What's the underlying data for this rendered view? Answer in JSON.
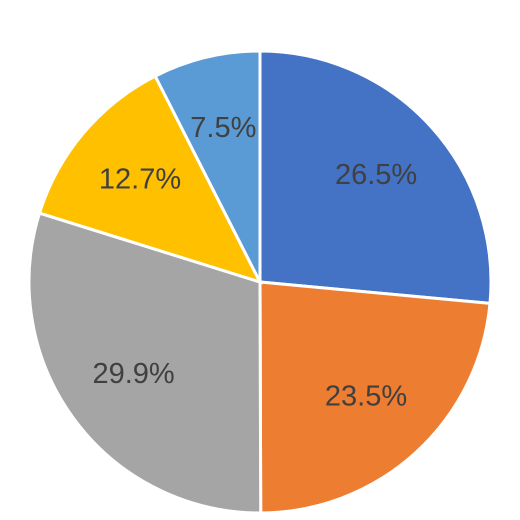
{
  "chart_data": {
    "type": "pie",
    "values": [
      26.5,
      23.5,
      29.9,
      12.7,
      7.5
    ],
    "value_labels": [
      "26.5%",
      "23.5%",
      "29.9%",
      "12.7%",
      "7.5%"
    ],
    "colors": [
      "#4472c4",
      "#ed7d31",
      "#a5a5a5",
      "#ffc000",
      "#5b9bd5"
    ]
  }
}
